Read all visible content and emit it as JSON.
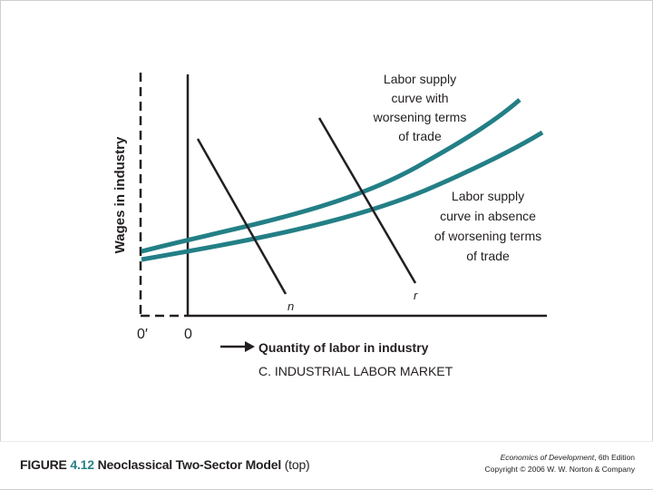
{
  "figure": {
    "title_label": "FIGURE",
    "number": "4.12",
    "title": "Neoclassical Two-Sector Model",
    "title_suffix": "(top)"
  },
  "credit": {
    "book": "Economics of Development",
    "edition": ", 6th Edition",
    "copyright": "Copyright © 2006 W. W. Norton & Company"
  },
  "axes": {
    "y_label": "Wages in industry",
    "x_label": "Quantity of labor in industry",
    "panel_label": "C. INDUSTRIAL LABOR MARKET",
    "origin": "0",
    "origin_shifted": "0′"
  },
  "curves": {
    "supply_worsening_label": [
      "Labor supply",
      "curve with",
      "worsening terms",
      "of trade"
    ],
    "supply_absent_label": [
      "Labor supply",
      "curve in absence",
      "of worsening terms",
      "of trade"
    ],
    "demand_n_label": "n",
    "demand_r_label": "r"
  },
  "colors": {
    "supply_curve": "#237f86",
    "ink": "#231f20",
    "accent_number": "#2a7f86"
  }
}
